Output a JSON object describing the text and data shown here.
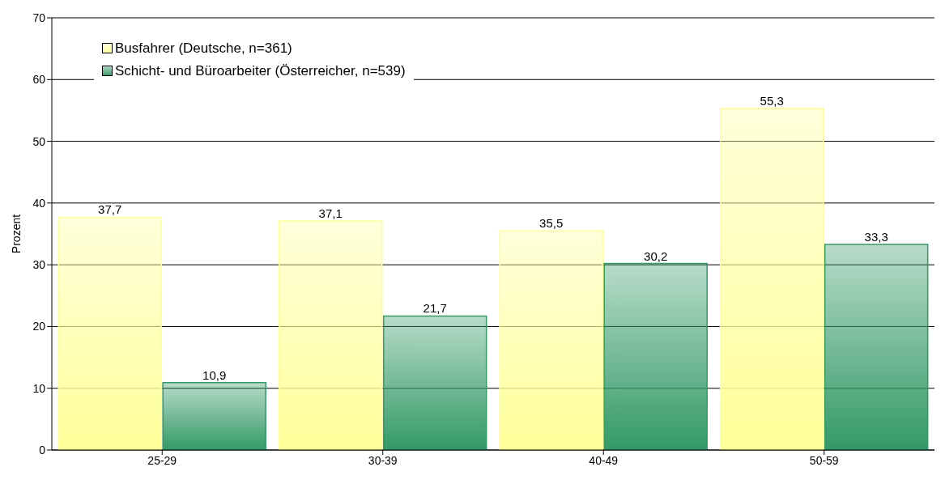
{
  "chart_data": {
    "type": "bar",
    "ylabel": "Prozent",
    "categories": [
      "25-29",
      "30-39",
      "40-49",
      "50-59"
    ],
    "series": [
      {
        "name": "Busfahrer (Deutsche, n=361)",
        "color": "#ffff99",
        "values": [
          37.7,
          37.1,
          35.5,
          55.3
        ],
        "value_labels": [
          "37,7",
          "37,1",
          "35,5",
          "55,3"
        ]
      },
      {
        "name": "Schicht- und Büroarbeiter (Österreicher, n=539)",
        "color": "#339966",
        "values": [
          10.9,
          21.7,
          30.2,
          33.3
        ],
        "value_labels": [
          "10,9",
          "21,7",
          "30,2",
          "33,3"
        ]
      }
    ],
    "ylim": [
      0,
      70
    ],
    "yticks": [
      0,
      10,
      20,
      30,
      40,
      50,
      60,
      70
    ],
    "grid": "y",
    "legend": "top left"
  }
}
